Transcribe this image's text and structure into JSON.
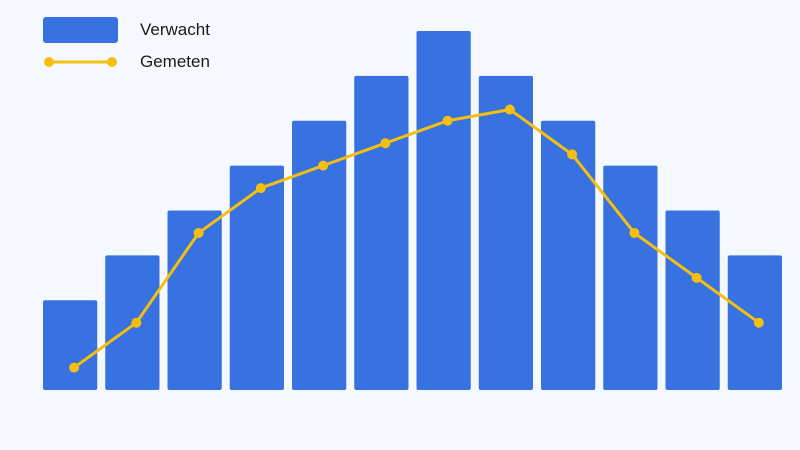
{
  "chart_data": {
    "type": "bar",
    "title": "",
    "xlabel": "",
    "ylabel": "",
    "grid": false,
    "legend_position": "top-left",
    "categories": [
      "",
      "",
      "",
      "",
      "",
      "",
      "",
      "",
      "",
      "",
      "",
      ""
    ],
    "ylim": [
      0,
      13
    ],
    "series": [
      {
        "name": "Verwacht",
        "kind": "bar",
        "color": "#3871e0",
        "values": [
          2,
          3,
          4,
          5,
          6,
          7,
          8,
          7,
          6,
          5,
          4,
          3
        ]
      },
      {
        "name": "Gemeten",
        "kind": "line",
        "color": "#f5bf0f",
        "values": [
          0.5,
          1.5,
          3.5,
          4.5,
          5,
          5.5,
          6,
          6.25,
          5.25,
          3.5,
          2.5,
          1.5
        ]
      }
    ]
  }
}
